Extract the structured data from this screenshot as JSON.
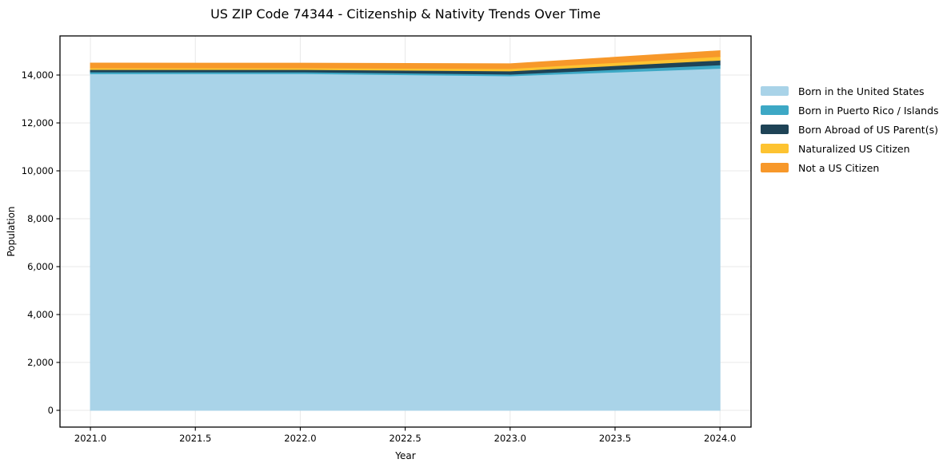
{
  "figure": {
    "background": "#ffffff"
  },
  "chart_data": {
    "type": "area",
    "stacked": true,
    "title": "US ZIP Code 74344 - Citizenship & Nativity Trends Over Time",
    "xlabel": "Year",
    "ylabel": "Population",
    "x": [
      2021,
      2022,
      2023,
      2024
    ],
    "series": [
      {
        "name": "Born in the United States",
        "color": "#a9d3e8",
        "values": [
          14055,
          14060,
          13965,
          14280
        ]
      },
      {
        "name": "Born in Puerto Rico / Islands",
        "color": "#3da8c5",
        "values": [
          75,
          70,
          70,
          145
        ]
      },
      {
        "name": "Born Abroad of US Parent(s)",
        "color": "#1e4356",
        "values": [
          100,
          100,
          135,
          195
        ]
      },
      {
        "name": "Naturalized US Citizen",
        "color": "#fdc331",
        "values": [
          70,
          70,
          100,
          155
        ]
      },
      {
        "name": "Not a US Citizen",
        "color": "#f7982a",
        "values": [
          200,
          195,
          200,
          240
        ]
      }
    ],
    "xlim": [
      2020.855,
      2024.148
    ],
    "ylim": [
      -700,
      15633
    ],
    "x_ticks": [
      {
        "value": 2021.0,
        "label": "2021.0"
      },
      {
        "value": 2021.5,
        "label": "2021.5"
      },
      {
        "value": 2022.0,
        "label": "2022.0"
      },
      {
        "value": 2022.5,
        "label": "2022.5"
      },
      {
        "value": 2023.0,
        "label": "2023.0"
      },
      {
        "value": 2023.5,
        "label": "2023.5"
      },
      {
        "value": 2024.0,
        "label": "2024.0"
      }
    ],
    "y_ticks": [
      {
        "value": 0,
        "label": "0"
      },
      {
        "value": 2000,
        "label": "2,000"
      },
      {
        "value": 4000,
        "label": "4,000"
      },
      {
        "value": 6000,
        "label": "6,000"
      },
      {
        "value": 8000,
        "label": "8,000"
      },
      {
        "value": 10000,
        "label": "10,000"
      },
      {
        "value": 12000,
        "label": "12,000"
      },
      {
        "value": 14000,
        "label": "14,000"
      }
    ],
    "grid": true,
    "grid_color": "#e8e8e8",
    "axis_color": "#000000",
    "legend_position": "right",
    "legend_frame": false
  }
}
